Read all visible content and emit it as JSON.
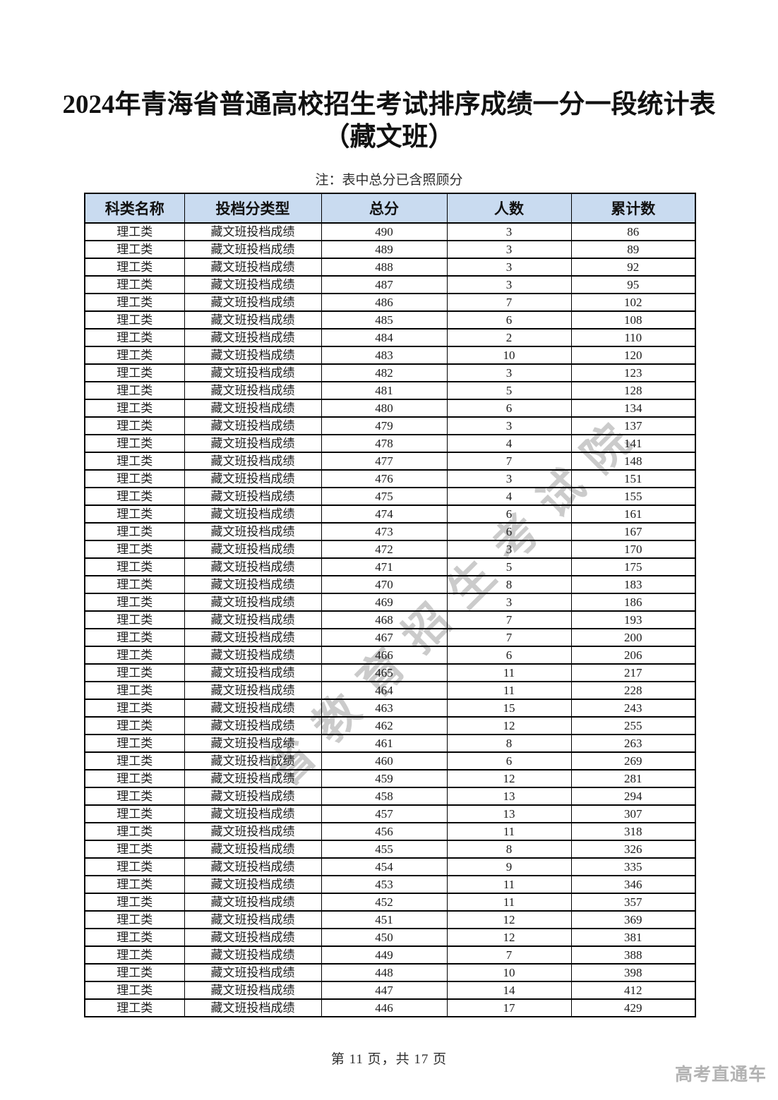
{
  "title_line1": "2024年青海省普通高校招生考试排序成绩一分一段统计表",
  "title_line2": "（藏文班）",
  "note": "注：表中总分已含照顾分",
  "watermark_text": "省教育招生考试院",
  "brand_text": "高考直通车",
  "footer_text": "第 11 页，共 17 页",
  "colors": {
    "header_bg": "#c9dbf0",
    "border": "#000000",
    "watermark": "#cbcbcb",
    "brand": "#b3b3b3"
  },
  "table": {
    "headers": [
      "科类名称",
      "投档分类型",
      "总分",
      "人数",
      "累计数"
    ],
    "rows": [
      [
        "理工类",
        "藏文班投档成绩",
        490,
        3,
        86
      ],
      [
        "理工类",
        "藏文班投档成绩",
        489,
        3,
        89
      ],
      [
        "理工类",
        "藏文班投档成绩",
        488,
        3,
        92
      ],
      [
        "理工类",
        "藏文班投档成绩",
        487,
        3,
        95
      ],
      [
        "理工类",
        "藏文班投档成绩",
        486,
        7,
        102
      ],
      [
        "理工类",
        "藏文班投档成绩",
        485,
        6,
        108
      ],
      [
        "理工类",
        "藏文班投档成绩",
        484,
        2,
        110
      ],
      [
        "理工类",
        "藏文班投档成绩",
        483,
        10,
        120
      ],
      [
        "理工类",
        "藏文班投档成绩",
        482,
        3,
        123
      ],
      [
        "理工类",
        "藏文班投档成绩",
        481,
        5,
        128
      ],
      [
        "理工类",
        "藏文班投档成绩",
        480,
        6,
        134
      ],
      [
        "理工类",
        "藏文班投档成绩",
        479,
        3,
        137
      ],
      [
        "理工类",
        "藏文班投档成绩",
        478,
        4,
        141
      ],
      [
        "理工类",
        "藏文班投档成绩",
        477,
        7,
        148
      ],
      [
        "理工类",
        "藏文班投档成绩",
        476,
        3,
        151
      ],
      [
        "理工类",
        "藏文班投档成绩",
        475,
        4,
        155
      ],
      [
        "理工类",
        "藏文班投档成绩",
        474,
        6,
        161
      ],
      [
        "理工类",
        "藏文班投档成绩",
        473,
        6,
        167
      ],
      [
        "理工类",
        "藏文班投档成绩",
        472,
        3,
        170
      ],
      [
        "理工类",
        "藏文班投档成绩",
        471,
        5,
        175
      ],
      [
        "理工类",
        "藏文班投档成绩",
        470,
        8,
        183
      ],
      [
        "理工类",
        "藏文班投档成绩",
        469,
        3,
        186
      ],
      [
        "理工类",
        "藏文班投档成绩",
        468,
        7,
        193
      ],
      [
        "理工类",
        "藏文班投档成绩",
        467,
        7,
        200
      ],
      [
        "理工类",
        "藏文班投档成绩",
        466,
        6,
        206
      ],
      [
        "理工类",
        "藏文班投档成绩",
        465,
        11,
        217
      ],
      [
        "理工类",
        "藏文班投档成绩",
        464,
        11,
        228
      ],
      [
        "理工类",
        "藏文班投档成绩",
        463,
        15,
        243
      ],
      [
        "理工类",
        "藏文班投档成绩",
        462,
        12,
        255
      ],
      [
        "理工类",
        "藏文班投档成绩",
        461,
        8,
        263
      ],
      [
        "理工类",
        "藏文班投档成绩",
        460,
        6,
        269
      ],
      [
        "理工类",
        "藏文班投档成绩",
        459,
        12,
        281
      ],
      [
        "理工类",
        "藏文班投档成绩",
        458,
        13,
        294
      ],
      [
        "理工类",
        "藏文班投档成绩",
        457,
        13,
        307
      ],
      [
        "理工类",
        "藏文班投档成绩",
        456,
        11,
        318
      ],
      [
        "理工类",
        "藏文班投档成绩",
        455,
        8,
        326
      ],
      [
        "理工类",
        "藏文班投档成绩",
        454,
        9,
        335
      ],
      [
        "理工类",
        "藏文班投档成绩",
        453,
        11,
        346
      ],
      [
        "理工类",
        "藏文班投档成绩",
        452,
        11,
        357
      ],
      [
        "理工类",
        "藏文班投档成绩",
        451,
        12,
        369
      ],
      [
        "理工类",
        "藏文班投档成绩",
        450,
        12,
        381
      ],
      [
        "理工类",
        "藏文班投档成绩",
        449,
        7,
        388
      ],
      [
        "理工类",
        "藏文班投档成绩",
        448,
        10,
        398
      ],
      [
        "理工类",
        "藏文班投档成绩",
        447,
        14,
        412
      ],
      [
        "理工类",
        "藏文班投档成绩",
        446,
        17,
        429
      ]
    ]
  }
}
